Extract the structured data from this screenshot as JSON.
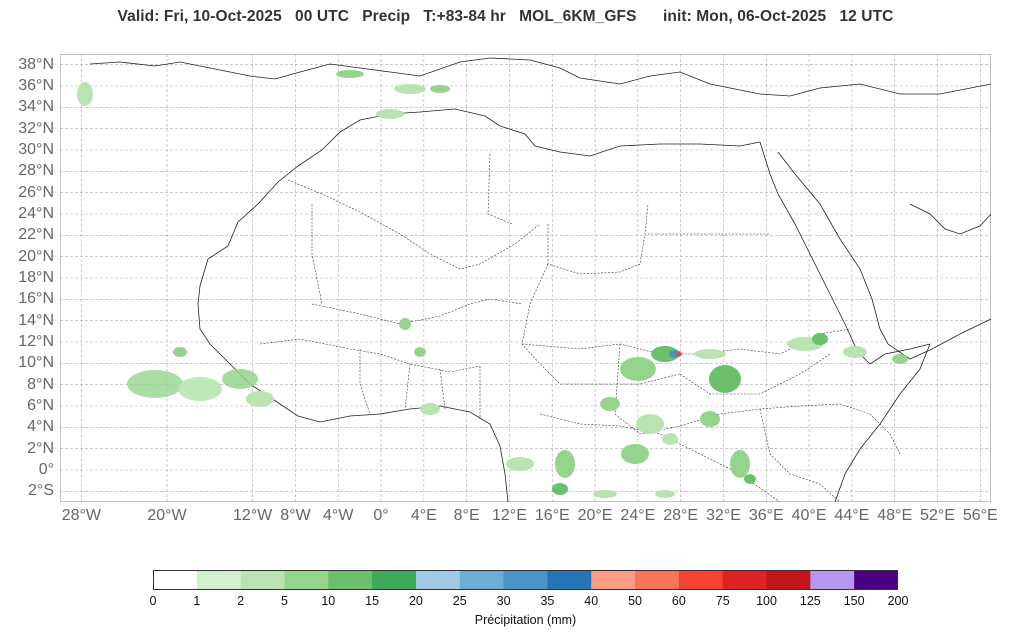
{
  "header": {
    "title": "Valid: Fri, 10-Oct-2025   00 UTC   Precip   T:+83-84 hr   MOL_6KM_GFS      init: Mon, 06-Oct-2025   12 UTC"
  },
  "map": {
    "lon_range": [
      -30,
      57
    ],
    "lat_range": [
      -3,
      39
    ],
    "lat_ticks": [
      "38°N",
      "36°N",
      "34°N",
      "32°N",
      "30°N",
      "28°N",
      "26°N",
      "24°N",
      "22°N",
      "20°N",
      "18°N",
      "16°N",
      "14°N",
      "12°N",
      "10°N",
      "8°N",
      "6°N",
      "4°N",
      "2°N",
      "0°",
      "2°S"
    ],
    "lat_values": [
      38,
      36,
      34,
      32,
      30,
      28,
      26,
      24,
      22,
      20,
      18,
      16,
      14,
      12,
      10,
      8,
      6,
      4,
      2,
      0,
      -2
    ],
    "lon_ticks": [
      "28°W",
      "20°W",
      "12°W",
      "8°W",
      "4°W",
      "0°",
      "4°E",
      "8°E",
      "12°E",
      "16°E",
      "20°E",
      "24°E",
      "28°E",
      "32°E",
      "36°E",
      "40°E",
      "44°E",
      "48°E",
      "52°E",
      "56°E"
    ],
    "lon_values": [
      -28,
      -20,
      -12,
      -8,
      -4,
      0,
      4,
      8,
      12,
      16,
      20,
      24,
      28,
      32,
      36,
      40,
      44,
      48,
      52,
      56
    ],
    "grid_color": "#aaaaaa",
    "coast_color": "#222222"
  },
  "colorbar": {
    "label": "Précipitation (mm)",
    "ticks": [
      "0",
      "1",
      "2",
      "5",
      "10",
      "15",
      "20",
      "25",
      "30",
      "35",
      "40",
      "50",
      "60",
      "75",
      "100",
      "125",
      "150",
      "200"
    ],
    "colors": [
      "#ffffff",
      "#d2f0d0",
      "#b9e4b2",
      "#95d48d",
      "#6cc06d",
      "#3fa85b",
      "#a2cae4",
      "#6daed6",
      "#4a93c7",
      "#2474b6",
      "#fa9c83",
      "#f87459",
      "#f34433",
      "#dd2424",
      "#c2161b",
      "#b497f0",
      "#4b0082"
    ]
  }
}
